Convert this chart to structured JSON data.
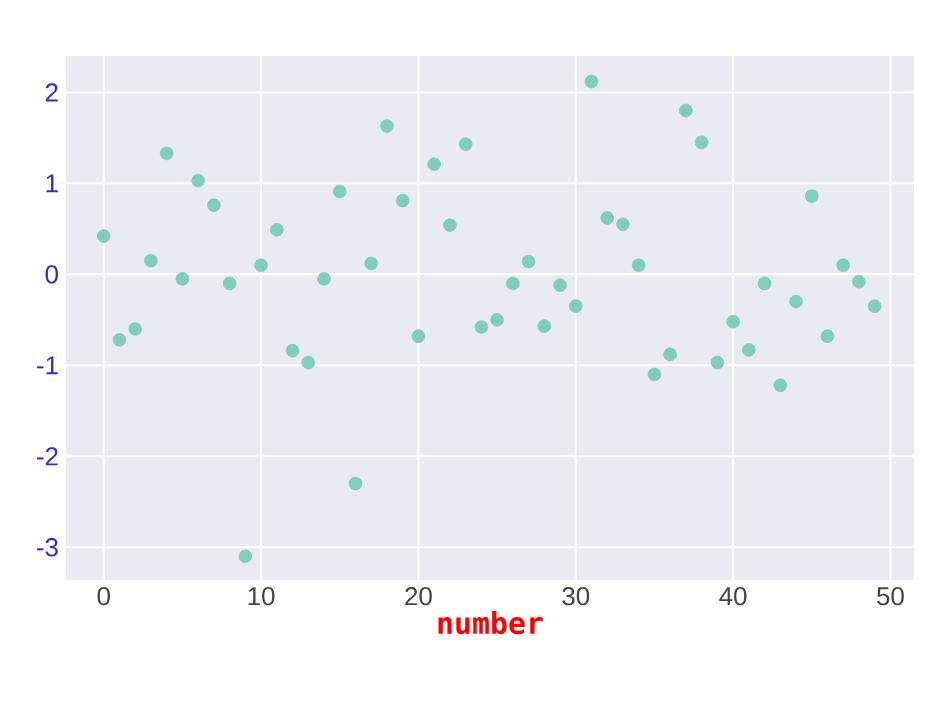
{
  "chart_data": {
    "type": "scatter",
    "xlabel": "number",
    "x": [
      0,
      1,
      2,
      3,
      4,
      5,
      6,
      7,
      8,
      9,
      10,
      11,
      12,
      13,
      14,
      15,
      16,
      17,
      18,
      19,
      20,
      21,
      22,
      23,
      24,
      25,
      26,
      27,
      28,
      29,
      30,
      31,
      32,
      33,
      34,
      35,
      36,
      37,
      38,
      39,
      40,
      41,
      42,
      43,
      44,
      45,
      46,
      47,
      48,
      49
    ],
    "series": [
      {
        "color": "#7fcdbb",
        "values": [
          0.42,
          -0.72,
          -0.6,
          0.15,
          1.33,
          -0.05,
          1.03,
          0.76,
          -0.1,
          -3.1,
          0.1,
          0.49,
          -0.84,
          -0.97,
          -0.05,
          0.91,
          -2.3,
          0.12,
          1.63,
          0.81,
          -0.68,
          1.21,
          0.54,
          1.43,
          -0.58,
          -0.5,
          -0.1,
          0.14,
          -0.57,
          -0.12,
          -0.35,
          2.12,
          0.62,
          0.55,
          0.1,
          -1.1,
          -0.88,
          1.8,
          1.45,
          -0.97,
          -0.52,
          -0.83,
          -0.1,
          -1.22,
          -0.3,
          0.86,
          -0.68,
          0.1,
          -0.08,
          -0.35
        ]
      }
    ],
    "xlim": [
      -2.4,
      51.5
    ],
    "ylim": [
      -3.36,
      2.4
    ],
    "xticks": [
      0,
      10,
      20,
      30,
      40,
      50
    ],
    "yticks": [
      -3,
      -2,
      -1,
      0,
      1,
      2
    ],
    "grid": true
  }
}
